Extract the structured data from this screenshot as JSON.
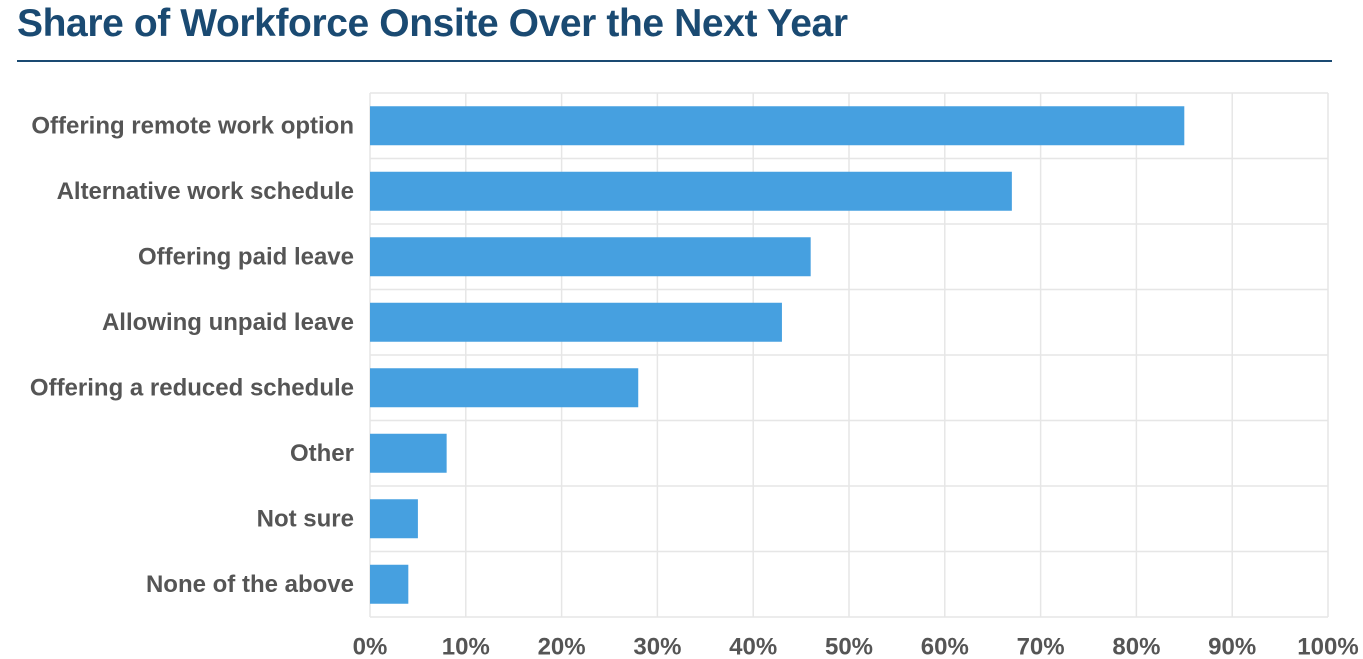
{
  "colors": {
    "title": "#1a4a72",
    "bar": "#46a0e0",
    "grid": "#e6e6e6",
    "label": "#555555"
  },
  "chart_data": {
    "type": "bar",
    "orientation": "horizontal",
    "title": "Share of Workforce Onsite Over the Next Year",
    "xlabel": "",
    "ylabel": "",
    "categories": [
      "Offering remote work option",
      "Alternative work schedule",
      "Offering paid leave",
      "Allowing unpaid leave",
      "Offering a reduced schedule",
      "Other",
      "Not sure",
      "None of the above"
    ],
    "values": [
      85,
      67,
      46,
      43,
      28,
      8,
      5,
      4
    ],
    "xlim": [
      0,
      100
    ],
    "ticks": [
      "0%",
      "10%",
      "20%",
      "30%",
      "40%",
      "50%",
      "60%",
      "70%",
      "80%",
      "90%",
      "100%"
    ],
    "tick_values": [
      0,
      10,
      20,
      30,
      40,
      50,
      60,
      70,
      80,
      90,
      100
    ],
    "grid": true,
    "legend": "none"
  }
}
